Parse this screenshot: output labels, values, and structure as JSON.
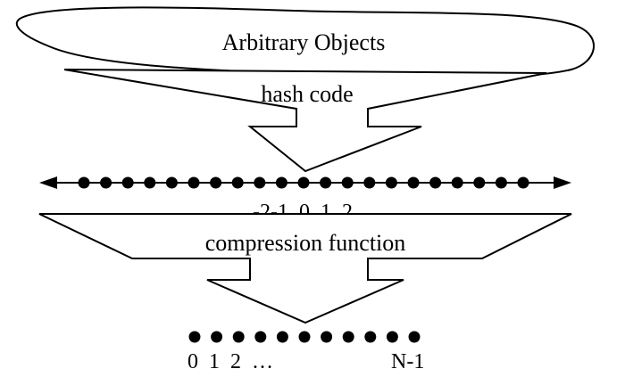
{
  "diagram": {
    "top_label": "Arbitrary Objects",
    "arrow1_label": "hash code",
    "integer_line_label": "… -2-1  0  1  2  …",
    "arrow2_label": "compression function",
    "range_label_left": "0  1  2  …",
    "range_label_right": "N-1"
  },
  "colors": {
    "stroke": "#000000",
    "fill": "#ffffff",
    "dot": "#000000"
  }
}
